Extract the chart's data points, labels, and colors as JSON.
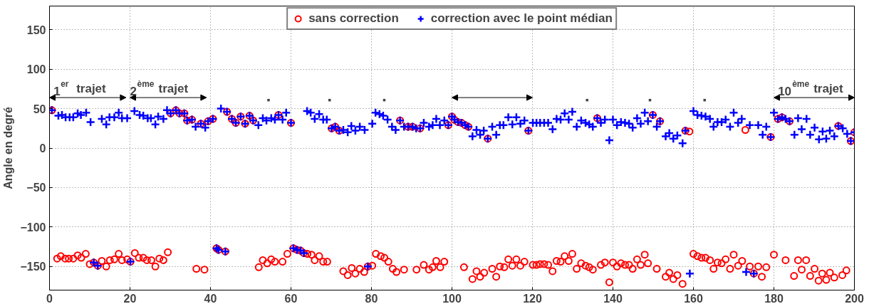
{
  "chart_data": {
    "type": "scatter",
    "ylabel": "Angle en degré",
    "xlim": [
      0,
      200
    ],
    "ylim": [
      -180,
      180
    ],
    "xticks": [
      0,
      20,
      40,
      60,
      80,
      100,
      120,
      140,
      160,
      180,
      200
    ],
    "yticks": [
      -150,
      -100,
      -50,
      0,
      50,
      100,
      150
    ],
    "grid": true,
    "legend": "top",
    "annotations": [
      "1$^{er}$ trajet",
      "2$^{ème}$ trajet",
      "10$^{ème}$ trajet",
      "▪",
      "▪",
      "▪",
      "▪",
      "▪",
      "▪"
    ],
    "series": [
      {
        "name": "sans correction",
        "color": "#ff0000",
        "marker": "circle",
        "x": [
          0.6,
          1.9,
          2.8,
          3.9,
          4.8,
          5.9,
          7,
          7.9,
          9,
          10,
          11,
          12,
          13,
          14.1,
          15,
          16.1,
          17.2,
          18,
          19.3,
          20.1,
          21.2,
          22.2,
          23.3,
          24.2,
          25.3,
          26.3,
          27.3,
          28.3,
          29.4,
          30.1,
          31.4,
          32.3,
          33.5,
          34.2,
          35.4,
          36.5,
          37.6,
          38.5,
          39.4,
          40.6,
          41.5,
          42,
          43.7,
          44.1,
          45.3,
          46.3,
          47.5,
          48.6,
          49.7,
          50.6,
          52,
          53,
          54.1,
          55.1,
          56,
          56.9,
          57.9,
          59.1,
          60,
          60.6,
          61.5,
          62.4,
          63.2,
          64.1,
          65.1,
          65.9,
          67,
          68,
          69,
          70.1,
          71,
          72,
          73,
          74.1,
          75.1,
          76,
          77.1,
          78.2,
          79.1,
          80.2,
          81.1,
          82.3,
          83.2,
          84.2,
          85.3,
          86.2,
          87.1,
          88.1,
          89.1,
          90.2,
          91.2,
          92.1,
          93,
          94.3,
          95.2,
          96.1,
          97.1,
          98.1,
          99.1,
          100,
          100.6,
          101.5,
          102.4,
          103,
          103.3,
          104.1,
          105.1,
          106.1,
          107,
          108,
          108.9,
          110,
          111,
          111.9,
          113,
          114,
          115,
          116,
          117,
          118,
          119,
          120.1,
          121,
          121.9,
          122.9,
          123.9,
          125,
          126,
          127,
          128,
          129,
          129.9,
          131,
          132.1,
          133.2,
          134.1,
          135,
          136.1,
          137,
          138,
          139.1,
          140,
          141,
          142,
          143,
          144,
          144.9,
          146,
          146.9,
          147.9,
          148.7,
          149.9,
          150.9,
          151.7,
          153.1,
          154,
          155,
          156,
          157.3,
          158,
          159,
          160,
          161,
          162,
          163,
          164.1,
          165,
          166,
          167,
          168,
          169.1,
          170,
          171.1,
          172.1,
          172.9,
          174,
          175,
          176.1,
          177,
          178.1,
          179.2,
          180,
          181,
          182,
          182.9,
          183.9,
          185,
          186,
          186.9,
          188,
          189,
          190.1,
          191.1,
          192,
          193,
          193.9,
          195,
          196,
          197,
          198,
          199.1,
          200
        ],
        "values": [
          48,
          -140,
          -137,
          -140,
          -140,
          -140,
          -136,
          -139,
          -134,
          -147,
          -145,
          -149,
          -143,
          -150,
          -142,
          -141,
          -134,
          -142,
          -141,
          -144,
          -133,
          -139,
          -139,
          -142,
          -142,
          -150,
          -140,
          -142,
          -132,
          44,
          48,
          44,
          44,
          35,
          36,
          -153,
          31,
          -154,
          34,
          37,
          -127,
          -129,
          -131,
          46,
          37,
          32,
          40,
          31,
          41,
          35,
          -151,
          -142,
          -146,
          -141,
          -144,
          42,
          -144,
          -134,
          32,
          -127,
          -129,
          -130,
          -133,
          -134,
          -135,
          -142,
          -137,
          -144,
          -144,
          25,
          27,
          22,
          -156,
          -161,
          -152,
          -159,
          -153,
          -157,
          -150,
          -149,
          -134,
          -137,
          -139,
          -144,
          -153,
          -157,
          35,
          -154,
          27,
          27,
          -154,
          25,
          -148,
          -154,
          -151,
          -143,
          -151,
          -144,
          29,
          40,
          36,
          33,
          32,
          -151,
          29,
          27,
          -166,
          -156,
          -163,
          -158,
          12,
          -153,
          -163,
          -150,
          -151,
          -141,
          -149,
          -141,
          -149,
          -144,
          22,
          -148,
          -148,
          -147,
          -147,
          -148,
          -156,
          -143,
          -144,
          -137,
          -143,
          -134,
          -153,
          -146,
          -149,
          -151,
          -154,
          38,
          -148,
          -145,
          -170,
          -145,
          -150,
          -146,
          -148,
          -148,
          -153,
          -141,
          -148,
          -135,
          -146,
          42,
          -153,
          34,
          -163,
          -158,
          -166,
          -161,
          -172,
          22,
          21,
          -134,
          -137,
          -139,
          -139,
          -142,
          -153,
          -145,
          -146,
          -141,
          -153,
          -135,
          -149,
          -143,
          23,
          -150,
          -159,
          -150,
          -163,
          -151,
          14,
          -135,
          37,
          39,
          -142,
          34,
          -162,
          -142,
          -154,
          -142,
          -162,
          -153,
          -168,
          -159,
          -167,
          -158,
          -164,
          28,
          -161,
          -155,
          9,
          20
        ]
      },
      {
        "name": "correction avec le point médian",
        "color": "#0000ff",
        "marker": "cross",
        "x": [
          0.6,
          2.2,
          3.1,
          4,
          5,
          5.9,
          7,
          7.8,
          9.1,
          10.2,
          11,
          12,
          13,
          14.1,
          14.9,
          16.1,
          17.2,
          18,
          19.3,
          20.1,
          21.1,
          22.4,
          23.3,
          24.4,
          25.2,
          26.3,
          27,
          28.3,
          29.2,
          30.1,
          31.4,
          32.3,
          33.5,
          34.2,
          35.4,
          36.3,
          37.6,
          38.7,
          39.4,
          40.6,
          41.5,
          42,
          42.6,
          43.7,
          44.1,
          45.3,
          46.3,
          47.5,
          48.6,
          49.7,
          50.6,
          51.9,
          53,
          53.9,
          55.1,
          56,
          56.9,
          57.9,
          58.8,
          60,
          60.6,
          61.5,
          62.4,
          63.2,
          64,
          64.9,
          65.9,
          67,
          68,
          68.9,
          70.1,
          71,
          72,
          73,
          74.1,
          75,
          76,
          77.1,
          78.3,
          79.1,
          80.2,
          81,
          82,
          82.9,
          84,
          85.1,
          86,
          87.1,
          88.1,
          89.1,
          90.2,
          91.1,
          92.1,
          93,
          94.3,
          95.2,
          96.1,
          97,
          98.1,
          99.1,
          100,
          100.6,
          101.5,
          102.4,
          103.3,
          104.1,
          105.1,
          106.1,
          107,
          107.9,
          108.9,
          110,
          111,
          111.9,
          112.8,
          114,
          115,
          116,
          117,
          118,
          119,
          120.1,
          121,
          121.9,
          122.9,
          123.9,
          125,
          126,
          127,
          128,
          129,
          129.9,
          131,
          132.1,
          133.2,
          134.1,
          135,
          136.1,
          137,
          138,
          139.1,
          140,
          141,
          142,
          143,
          144,
          144.9,
          146,
          146.9,
          147.9,
          148.7,
          149.9,
          150.9,
          151.7,
          153.1,
          154,
          155,
          156,
          157.3,
          158,
          159.1,
          160,
          161,
          162,
          163,
          164.1,
          165,
          166,
          167,
          168,
          169.1,
          170,
          171.1,
          172,
          173.1,
          174,
          175,
          176.1,
          177.2,
          178.1,
          179.2,
          180,
          181,
          182,
          182.9,
          183.9,
          185.1,
          186,
          186.9,
          188.1,
          189,
          190.1,
          191.2,
          192.1,
          193,
          193.9,
          195,
          196,
          197.1,
          198.2,
          199.1,
          200
        ],
        "values": [
          48,
          41,
          42,
          39,
          39,
          39,
          44,
          42,
          45,
          33,
          -145,
          -149,
          37,
          30,
          39,
          39,
          45,
          38,
          38,
          -144,
          47,
          42,
          41,
          38,
          38,
          30,
          40,
          37,
          48,
          44,
          48,
          44,
          44,
          35,
          36,
          27,
          31,
          26,
          34,
          37,
          -127,
          -129,
          50,
          -131,
          46,
          37,
          32,
          40,
          31,
          41,
          35,
          29,
          38,
          35,
          38,
          36,
          42,
          36,
          45,
          32,
          -127,
          -129,
          -130,
          -133,
          47,
          45,
          37,
          43,
          36,
          36,
          25,
          27,
          22,
          23,
          20,
          28,
          22,
          27,
          23,
          -150,
          31,
          45,
          43,
          41,
          36,
          27,
          23,
          35,
          27,
          27,
          27,
          25,
          25,
          32,
          27,
          29,
          37,
          29,
          35,
          29,
          40,
          36,
          33,
          32,
          29,
          27,
          15,
          23,
          17,
          22,
          12,
          27,
          17,
          29,
          29,
          39,
          30,
          39,
          31,
          35,
          22,
          32,
          32,
          32,
          32,
          32,
          24,
          37,
          36,
          44,
          36,
          46,
          27,
          35,
          32,
          30,
          27,
          38,
          32,
          36,
          10,
          36,
          29,
          33,
          32,
          31,
          26,
          38,
          31,
          45,
          34,
          42,
          27,
          34,
          15,
          19,
          12,
          16,
          6,
          22,
          -159,
          47,
          42,
          41,
          40,
          37,
          27,
          33,
          33,
          36,
          27,
          45,
          32,
          37,
          -157,
          29,
          -159,
          29,
          17,
          27,
          14,
          45,
          37,
          39,
          37,
          34,
          17,
          38,
          24,
          37,
          17,
          26,
          11,
          21,
          12,
          22,
          15,
          28,
          25,
          18,
          9,
          20
        ]
      }
    ]
  }
}
